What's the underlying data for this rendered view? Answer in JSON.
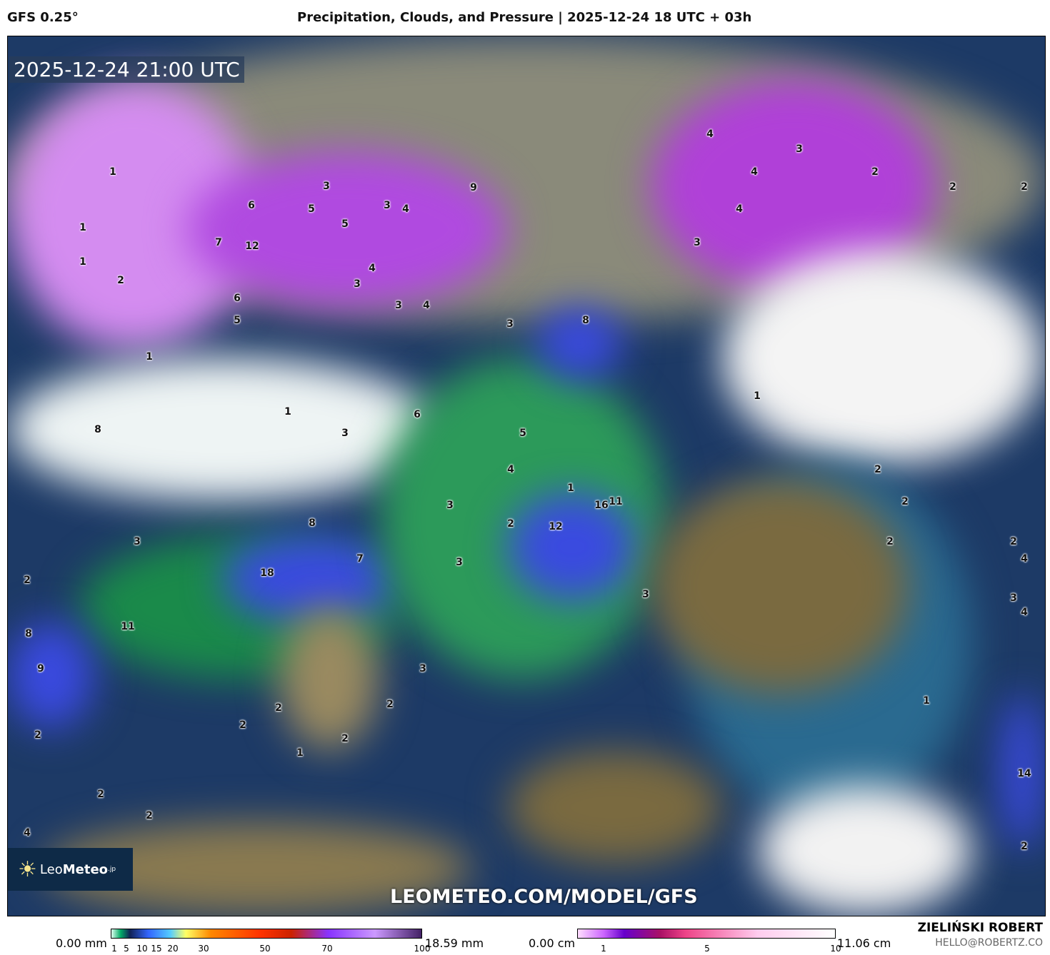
{
  "header": {
    "model": "GFS 0.25°",
    "title": "Precipitation, Clouds, and Pressure | 2025-12-24 18 UTC + 03h"
  },
  "map": {
    "timestamp": "2025-12-24 21:00 UTC",
    "watermark": "LEOMETEO.COM/MODEL/GFS",
    "logo": {
      "name": "Leo",
      "bold": "Meteo",
      "suffix": ".jp"
    },
    "value_labels": [
      "1",
      "1",
      "1",
      "2",
      "7",
      "12",
      "6",
      "6",
      "5",
      "5",
      "3",
      "5",
      "3",
      "4",
      "9",
      "4",
      "3",
      "3",
      "4",
      "3",
      "8",
      "4",
      "3",
      "4",
      "2",
      "2",
      "2",
      "4",
      "3",
      "1",
      "1",
      "8",
      "1",
      "3",
      "6",
      "5",
      "4",
      "1",
      "16",
      "11",
      "3",
      "2",
      "12",
      "8",
      "7",
      "18",
      "3",
      "3",
      "2",
      "8",
      "11",
      "9",
      "3",
      "2",
      "2",
      "2",
      "2",
      "4",
      "3",
      "4",
      "3",
      "2",
      "2",
      "1",
      "2",
      "2",
      "2",
      "1",
      "14",
      "2",
      "2",
      "4",
      "2"
    ]
  },
  "legend_rain": {
    "min": "0.00 mm",
    "max": "18.59 mm",
    "ticks": [
      "1",
      "5",
      "10",
      "15",
      "20",
      "30",
      "50",
      "70",
      "100"
    ]
  },
  "legend_snow": {
    "min": "0.00 cm",
    "max": "11.06 cm",
    "ticks": [
      "1",
      "5",
      "10"
    ]
  },
  "credit": {
    "name": "ZIELIŃSKI ROBERT",
    "email": "HELLO@ROBERTZ.CO"
  }
}
